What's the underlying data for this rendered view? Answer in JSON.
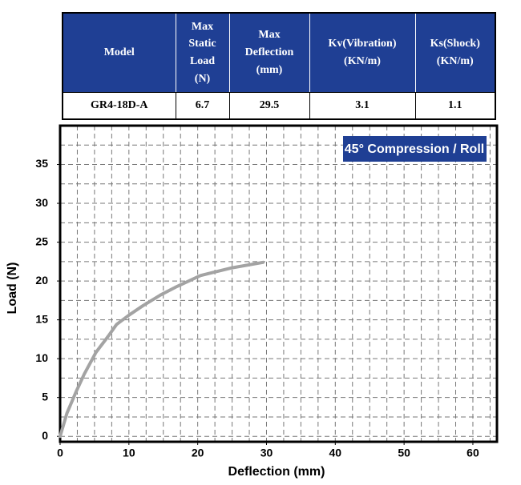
{
  "table": {
    "header": [
      "Model",
      "Max Static Load (N)",
      "Max Deflection (mm)",
      "Kv(Vibration) (KN/m)",
      "Ks(Shock) (KN/m)"
    ],
    "rows": [
      [
        "GR4-18D-A",
        "6.7",
        "29.5",
        "3.1",
        "1.1"
      ]
    ]
  },
  "chart_data": {
    "type": "line",
    "annotation": "45° Compression / Roll",
    "x_label": "Deflection (mm)",
    "y_label": "Load (N)",
    "x": [
      0,
      1,
      2.3,
      3.5,
      5.2,
      7,
      8.2,
      10,
      12,
      14.6,
      17,
      20.4,
      25,
      29.5
    ],
    "values": [
      0,
      3,
      5.7,
      8,
      10.8,
      12.9,
      14.4,
      15.6,
      16.8,
      18.2,
      19.3,
      20.7,
      21.7,
      22.4
    ],
    "color": "#a3a3a3",
    "xlim": [
      0,
      63.5
    ],
    "ylim": [
      -0.7,
      40
    ],
    "xticks": [
      0,
      10,
      20,
      30,
      40,
      50,
      60
    ],
    "yticks": [
      0,
      5,
      10,
      15,
      20,
      25,
      30,
      35
    ],
    "grid": true,
    "xgrid": [
      2.5,
      5,
      7.5,
      10,
      12.5,
      15,
      17.5,
      20,
      22.5,
      25,
      27.5,
      30,
      32.5,
      35,
      37.5,
      40,
      42.5,
      45,
      47.5,
      50,
      52.5,
      55,
      57.5,
      60,
      62.5
    ],
    "ygrid": [
      0,
      2.5,
      5,
      7.5,
      10,
      12.5,
      15,
      17.5,
      20,
      22.5,
      25,
      27.5,
      30,
      32.5,
      35,
      37.5
    ]
  }
}
